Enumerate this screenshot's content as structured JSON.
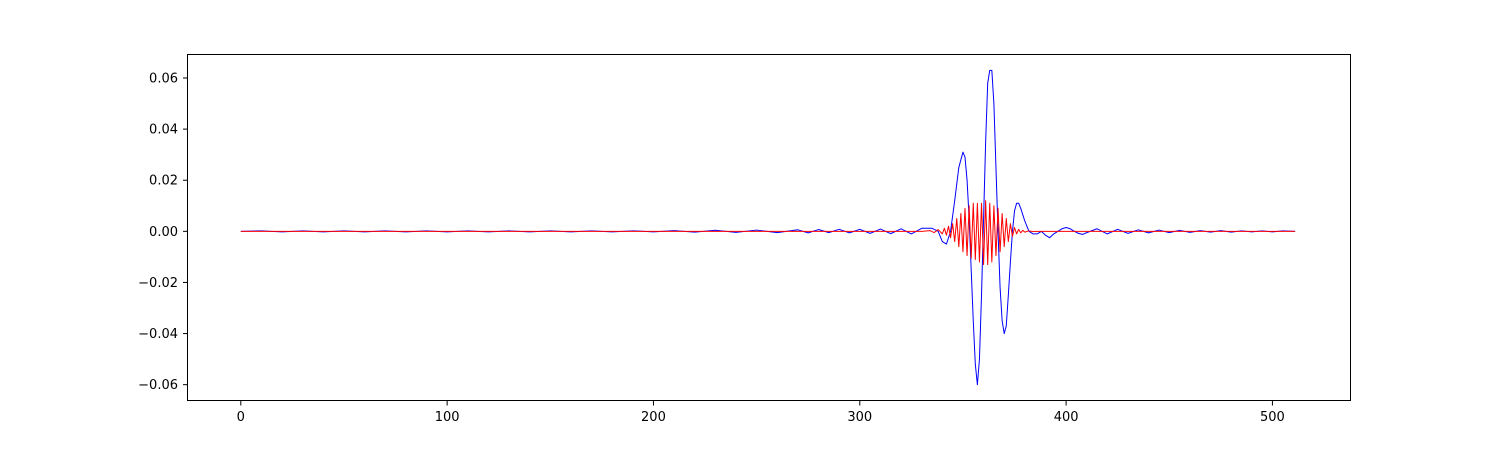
{
  "chart_data": {
    "type": "line",
    "title": "",
    "xlabel": "",
    "ylabel": "",
    "xlim": [
      -25.6,
      537.6
    ],
    "ylim": [
      -0.066,
      0.069
    ],
    "x_ticks": [
      0,
      100,
      200,
      300,
      400,
      500
    ],
    "x_tick_labels": [
      "0",
      "100",
      "200",
      "300",
      "400",
      "500"
    ],
    "y_ticks": [
      -0.06,
      -0.04,
      -0.02,
      0.0,
      0.02,
      0.04,
      0.06
    ],
    "y_tick_labels": [
      "−0.06",
      "−0.04",
      "−0.02",
      "0.00",
      "0.02",
      "0.04",
      "0.06"
    ],
    "grid": false,
    "legend": "none",
    "series": [
      {
        "color": "#0000ff",
        "x": [
          0,
          10,
          20,
          30,
          40,
          50,
          60,
          70,
          80,
          90,
          100,
          110,
          120,
          130,
          140,
          150,
          160,
          170,
          180,
          190,
          200,
          210,
          220,
          230,
          240,
          250,
          260,
          270,
          275,
          280,
          285,
          290,
          295,
          300,
          305,
          310,
          315,
          320,
          325,
          330,
          335,
          338,
          340,
          342,
          344,
          346,
          348,
          350,
          351,
          352,
          353,
          354,
          355,
          356,
          357,
          358,
          359,
          360,
          361,
          362,
          363,
          364,
          365,
          366,
          367,
          368,
          369,
          370,
          371,
          372,
          373,
          374,
          375,
          376,
          377,
          378,
          380,
          382,
          384,
          386,
          388,
          390,
          392,
          394,
          396,
          398,
          400,
          402,
          404,
          406,
          408,
          410,
          415,
          420,
          425,
          430,
          435,
          440,
          445,
          450,
          455,
          460,
          465,
          470,
          475,
          480,
          485,
          490,
          495,
          500,
          505,
          511
        ],
        "y": [
          0.0,
          0.0002,
          -0.0002,
          0.0002,
          -0.0002,
          0.0002,
          -0.0002,
          0.0002,
          -0.0002,
          0.0002,
          -0.0002,
          0.0002,
          -0.0002,
          0.0002,
          -0.0002,
          0.0002,
          -0.0002,
          0.0002,
          -0.0002,
          0.0002,
          -0.0002,
          0.0003,
          -0.0003,
          0.0004,
          -0.0004,
          0.0005,
          -0.0005,
          0.0006,
          -0.0006,
          0.0007,
          -0.0005,
          0.0008,
          -0.0006,
          0.0008,
          -0.0008,
          0.0009,
          -0.0009,
          0.001,
          -0.001,
          0.0012,
          0.0012,
          0.0,
          -0.004,
          -0.005,
          0.0,
          0.012,
          0.025,
          0.031,
          0.029,
          0.02,
          0.005,
          -0.015,
          -0.035,
          -0.052,
          -0.06,
          -0.05,
          -0.025,
          0.005,
          0.035,
          0.058,
          0.063,
          0.063,
          0.05,
          0.025,
          0.0,
          -0.022,
          -0.035,
          -0.04,
          -0.037,
          -0.025,
          -0.012,
          0.0,
          0.008,
          0.011,
          0.011,
          0.009,
          0.004,
          0.0,
          -0.001,
          -0.001,
          0.0,
          -0.0015,
          -0.0025,
          -0.001,
          0.0,
          0.001,
          0.0015,
          0.001,
          0.0,
          -0.0008,
          -0.0012,
          -0.0005,
          0.001,
          -0.001,
          0.0008,
          -0.0008,
          0.0006,
          -0.0006,
          0.0005,
          -0.0005,
          0.0004,
          -0.0004,
          0.0003,
          -0.0003,
          0.0003,
          -0.0003,
          0.0002,
          -0.0002,
          0.0002,
          -0.0002,
          0.0002,
          0.0
        ]
      },
      {
        "color": "#ff0000",
        "x": [
          0,
          100,
          200,
          300,
          320,
          330,
          334,
          336,
          338,
          340,
          341,
          342,
          343,
          344,
          345,
          346,
          347,
          348,
          349,
          350,
          351,
          352,
          353,
          354,
          355,
          356,
          357,
          358,
          359,
          360,
          361,
          362,
          363,
          364,
          365,
          366,
          367,
          368,
          369,
          370,
          371,
          372,
          373,
          374,
          375,
          376,
          377,
          378,
          379,
          380,
          382,
          384,
          386,
          390,
          400,
          450,
          511
        ],
        "y": [
          0.0,
          0.0,
          0.0,
          0.0,
          0.0,
          0.0,
          0.0003,
          -0.0005,
          0.0007,
          -0.001,
          0.0012,
          -0.0015,
          0.002,
          -0.0025,
          0.003,
          -0.004,
          0.005,
          -0.006,
          0.007,
          -0.008,
          0.009,
          -0.0095,
          0.01,
          -0.0105,
          0.011,
          -0.011,
          0.011,
          -0.012,
          0.011,
          -0.013,
          0.012,
          -0.013,
          0.011,
          -0.012,
          0.01,
          -0.0095,
          0.009,
          -0.008,
          0.007,
          -0.006,
          0.005,
          -0.004,
          0.003,
          -0.002,
          0.0015,
          -0.001,
          0.0008,
          -0.0006,
          0.0004,
          -0.0003,
          0.0002,
          -0.0001,
          0.0,
          0.0,
          0.0,
          0.0,
          0.0
        ]
      }
    ]
  }
}
